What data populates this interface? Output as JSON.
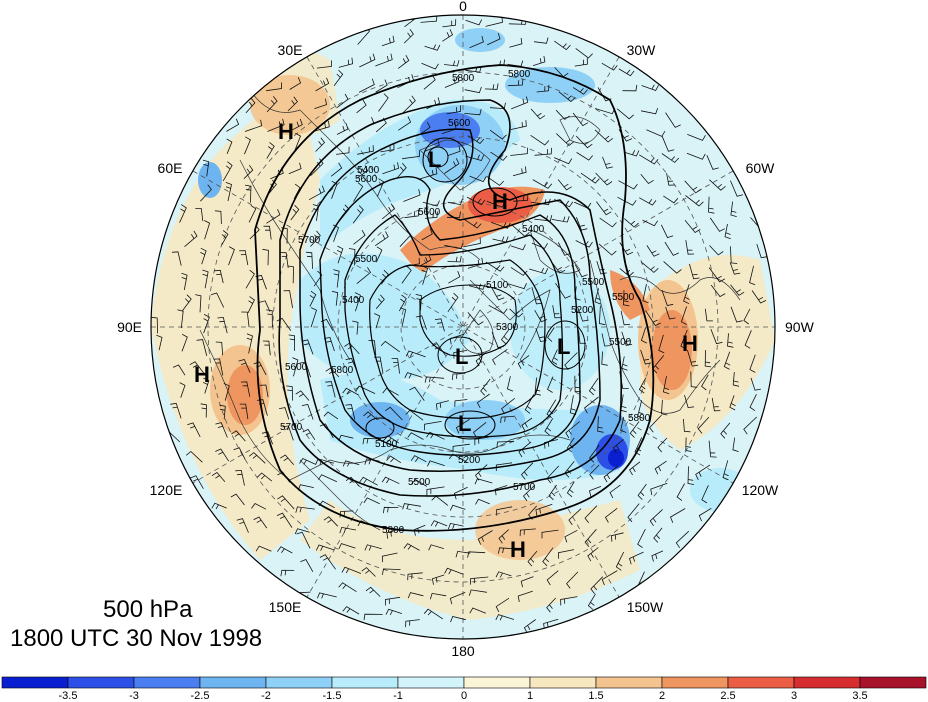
{
  "map": {
    "projection": "polar stereographic (north pole)",
    "field_shaded": "anomaly",
    "contour_field": "500 hPa geopotential height",
    "longitude_labels": [
      {
        "lon": 0,
        "text": "0"
      },
      {
        "lon": 30,
        "text": "30W"
      },
      {
        "lon": 60,
        "text": "60W"
      },
      {
        "lon": 90,
        "text": "90W"
      },
      {
        "lon": 120,
        "text": "120W"
      },
      {
        "lon": 150,
        "text": "150W"
      },
      {
        "lon": 180,
        "text": "180"
      },
      {
        "lon": 210,
        "text": "150E"
      },
      {
        "lon": 240,
        "text": "120E"
      },
      {
        "lon": 270,
        "text": "90E"
      },
      {
        "lon": 300,
        "text": "60E"
      },
      {
        "lon": 330,
        "text": "30E"
      }
    ],
    "pressure_systems": [
      {
        "type": "H",
        "text": "H"
      },
      {
        "type": "H",
        "text": "H"
      },
      {
        "type": "H",
        "text": "H"
      },
      {
        "type": "H",
        "text": "H"
      },
      {
        "type": "H",
        "text": "H"
      },
      {
        "type": "L",
        "text": "L"
      },
      {
        "type": "L",
        "text": "L"
      },
      {
        "type": "L",
        "text": "L"
      },
      {
        "type": "L",
        "text": "L"
      }
    ],
    "contour_labels": [
      "5800",
      "5800",
      "5600",
      "5600",
      "5600",
      "5700",
      "5400",
      "5500",
      "5400",
      "5800",
      "5100",
      "5300",
      "5200",
      "5500",
      "5100",
      "5200",
      "5500",
      "5700",
      "5800",
      "5600",
      "5700",
      "5500",
      "5500",
      "5800",
      "5400"
    ],
    "colors": {
      "strong_neg": "#0a1fd0",
      "mid_neg": "#6eb4f0",
      "weak_neg": "#d2f4fa",
      "weak_pos": "#f8e8bf",
      "mid_pos": "#f2a068",
      "strong_pos": "#a8122a"
    }
  },
  "title": {
    "line1": "500 hPa",
    "line2": "1800 UTC 30 Nov 1998"
  },
  "colorbar": {
    "colors": [
      "#0a1fd0",
      "#2c4fe8",
      "#4b7ef0",
      "#6eb4f0",
      "#8fd0f6",
      "#b8ecfb",
      "#d2f4fa",
      "#fbf5d8",
      "#f8e8bf",
      "#f3c48f",
      "#ef9560",
      "#eb5e45",
      "#d52d30",
      "#a8122a"
    ],
    "tick_labels": [
      "-3.5",
      "-3",
      "-2.5",
      "-2",
      "-1.5",
      "-1",
      "0",
      "1",
      "1.5",
      "2",
      "2.5",
      "3",
      "3.5"
    ]
  }
}
